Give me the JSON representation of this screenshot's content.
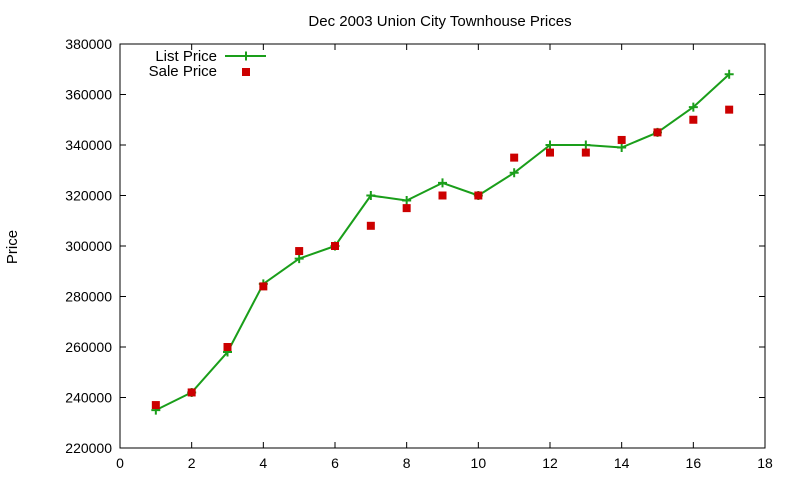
{
  "chart_data": {
    "type": "line",
    "title": "Dec 2003 Union City Townhouse Prices",
    "xlabel": "",
    "ylabel": "Price",
    "xlim": [
      0,
      18
    ],
    "ylim": [
      220000,
      380000
    ],
    "xticks": [
      0,
      2,
      4,
      6,
      8,
      10,
      12,
      14,
      16,
      18
    ],
    "yticks": [
      220000,
      240000,
      260000,
      280000,
      300000,
      320000,
      340000,
      360000,
      380000
    ],
    "grid": false,
    "legend_position": "top-left",
    "series": [
      {
        "name": "List Price",
        "style": "line-with-plus-markers",
        "color": "#1a9e1a",
        "points": [
          [
            1,
            235000
          ],
          [
            2,
            242000
          ],
          [
            3,
            258000
          ],
          [
            4,
            285000
          ],
          [
            5,
            295000
          ],
          [
            6,
            300000
          ],
          [
            7,
            320000
          ],
          [
            8,
            318000
          ],
          [
            9,
            325000
          ],
          [
            10,
            320000
          ],
          [
            11,
            329000
          ],
          [
            12,
            340000
          ],
          [
            13,
            340000
          ],
          [
            14,
            339000
          ],
          [
            15,
            345000
          ],
          [
            16,
            355000
          ],
          [
            17,
            368000
          ]
        ]
      },
      {
        "name": "Sale Price",
        "style": "square-markers",
        "color": "#cc0000",
        "points": [
          [
            1,
            237000
          ],
          [
            2,
            242000
          ],
          [
            3,
            260000
          ],
          [
            4,
            284000
          ],
          [
            5,
            298000
          ],
          [
            6,
            300000
          ],
          [
            7,
            308000
          ],
          [
            8,
            315000
          ],
          [
            9,
            320000
          ],
          [
            10,
            320000
          ],
          [
            11,
            335000
          ],
          [
            12,
            337000
          ],
          [
            13,
            337000
          ],
          [
            14,
            342000
          ],
          [
            15,
            345000
          ],
          [
            16,
            350000
          ],
          [
            17,
            354000
          ]
        ]
      }
    ]
  }
}
